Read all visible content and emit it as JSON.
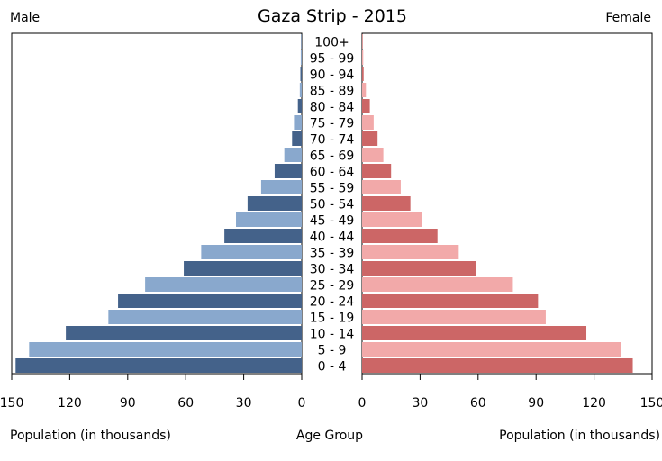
{
  "chart_data": {
    "type": "bar",
    "title": "Gaza Strip - 2015",
    "left_label": "Male",
    "right_label": "Female",
    "xlabel_left": "Population (in thousands)",
    "xlabel_center": "Age Group",
    "xlabel_right": "Population (in thousands)",
    "xlim": [
      0,
      150
    ],
    "ticks": [
      "150",
      "120",
      "90",
      "60",
      "30",
      "0"
    ],
    "ticks_right": [
      "0",
      "30",
      "60",
      "90",
      "120",
      "150"
    ],
    "categories": [
      "0 - 4",
      "5 - 9",
      "10 - 14",
      "15 - 19",
      "20 - 24",
      "25 - 29",
      "30 - 34",
      "35 - 39",
      "40 - 44",
      "45 - 49",
      "50 - 54",
      "55 - 59",
      "60 - 64",
      "65 - 69",
      "70 - 74",
      "75 - 79",
      "80 - 84",
      "85 - 89",
      "90 - 94",
      "95 - 99",
      "100+"
    ],
    "series": [
      {
        "name": "Male",
        "values": [
          148,
          141,
          122,
          100,
          95,
          81,
          61,
          52,
          40,
          34,
          28,
          21,
          14,
          9,
          5,
          4,
          2,
          1,
          0.7,
          0.5,
          0.3
        ]
      },
      {
        "name": "Female",
        "values": [
          140,
          134,
          116,
          95,
          91,
          78,
          59,
          50,
          39,
          31,
          25,
          20,
          15,
          11,
          8,
          6,
          4,
          2,
          0.8,
          0.6,
          0.3
        ]
      }
    ],
    "colors": {
      "male_dark": "#44628a",
      "male_light": "#89a8cd",
      "female_dark": "#cc6666",
      "female_light": "#f2a9a9"
    },
    "grid": false,
    "legend": "none"
  }
}
